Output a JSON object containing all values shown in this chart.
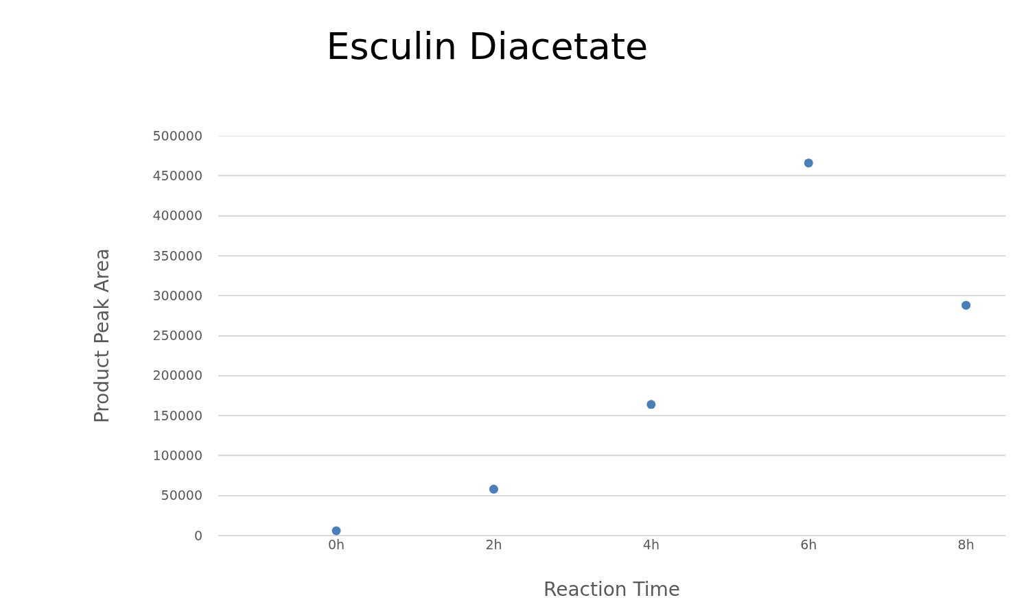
{
  "chart_data": {
    "type": "scatter",
    "title": "Esculin Diacetate",
    "xlabel": "Reaction Time",
    "ylabel": "Product Peak Area",
    "categories": [
      "0h",
      "2h",
      "4h",
      "6h",
      "8h"
    ],
    "series": [
      {
        "color": "#4a7ebb",
        "values": [
          6000,
          58000,
          164000,
          466000,
          288000
        ]
      }
    ],
    "ylim": [
      0,
      500000
    ],
    "yticks": [
      0,
      50000,
      100000,
      150000,
      200000,
      250000,
      300000,
      350000,
      400000,
      450000,
      500000
    ],
    "grid": "y",
    "marker": "circle"
  }
}
